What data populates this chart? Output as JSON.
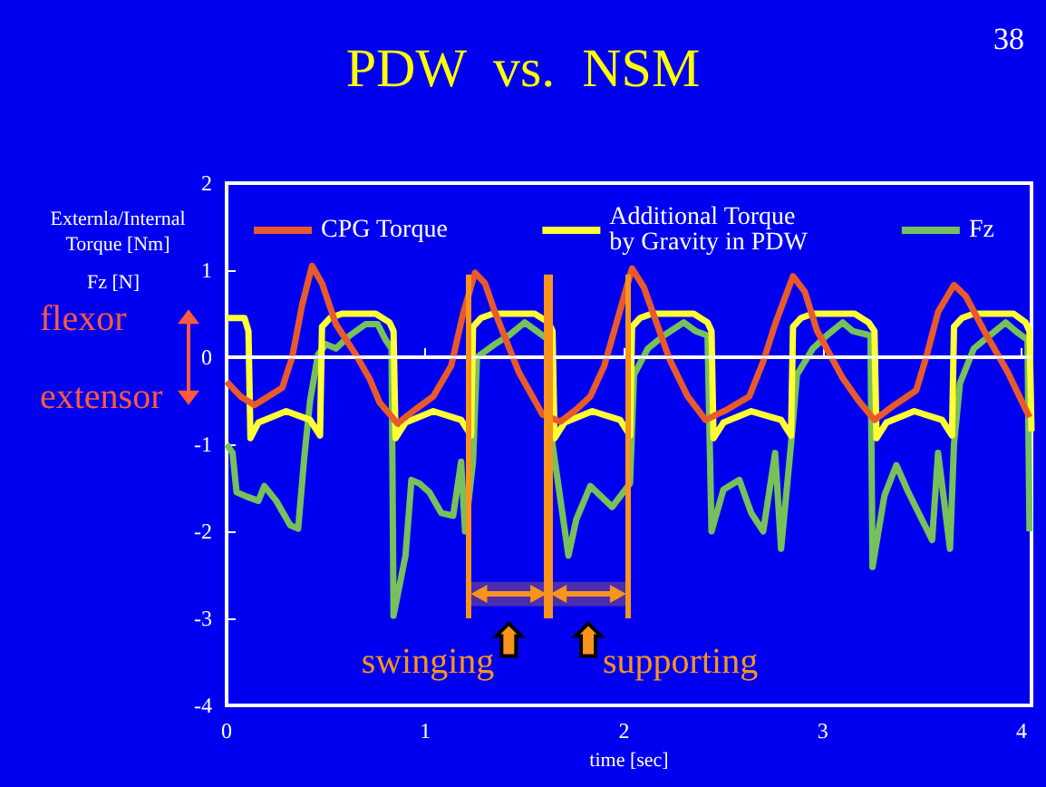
{
  "chart_data": {
    "type": "line",
    "title": "PDW  vs.  NSM",
    "xlabel": "time [sec]",
    "ylabel": "Externla/Internal Torque [Nm]",
    "annotations": [
      "38",
      "Fz [N]",
      "flexor",
      "extensor"
    ],
    "bands": [
      {
        "axis": "x",
        "from": 1.22,
        "to": 1.62,
        "label": "swinging"
      },
      {
        "axis": "x",
        "from": 1.62,
        "to": 2.02,
        "label": "supporting"
      }
    ],
    "xlim": [
      0,
      4.05
    ],
    "xticks": [
      0,
      1,
      2,
      3,
      4
    ],
    "ylim": [
      -4,
      2
    ],
    "yticks": [
      -4,
      -3,
      -2,
      -1,
      0,
      1,
      2
    ],
    "grid": false,
    "legend": "top",
    "marker": "none",
    "line_style": "solid",
    "ref_lines": [
      {
        "axis": "y",
        "value": 0,
        "color": "#ffffff"
      },
      {
        "axis": "x",
        "value": 1.22,
        "color": "#f7941d"
      },
      {
        "axis": "x",
        "value": 1.62,
        "color": "#f7941d"
      },
      {
        "axis": "x",
        "value": 2.02,
        "color": "#f7941d"
      }
    ],
    "series": [
      {
        "name": "CPG Torque",
        "color": "#e85a2a",
        "x": [
          0,
          0.07,
          0.14,
          0.21,
          0.28,
          0.33,
          0.38,
          0.43,
          0.48,
          0.55,
          0.65,
          0.72,
          0.77,
          0.86,
          0.95,
          1.04,
          1.13,
          1.19,
          1.25,
          1.3,
          1.35,
          1.47,
          1.59,
          1.68,
          1.76,
          1.83,
          1.9,
          1.96,
          2.04,
          2.1,
          2.23,
          2.32,
          2.41,
          2.52,
          2.63,
          2.7,
          2.76,
          2.85,
          2.91,
          2.97,
          3.1,
          3.18,
          3.26,
          3.36,
          3.47,
          3.52,
          3.58,
          3.66,
          3.72,
          3.81,
          3.93,
          4.04
        ],
        "values": [
          -0.28,
          -0.45,
          -0.55,
          -0.45,
          -0.35,
          0.0,
          0.6,
          1.05,
          0.85,
          0.38,
          0.03,
          -0.25,
          -0.52,
          -0.76,
          -0.6,
          -0.45,
          -0.1,
          0.5,
          0.97,
          0.85,
          0.52,
          -0.17,
          -0.66,
          -0.74,
          -0.6,
          -0.45,
          -0.1,
          0.38,
          1.02,
          0.8,
          -0.03,
          -0.45,
          -0.72,
          -0.6,
          -0.45,
          -0.05,
          0.38,
          0.93,
          0.75,
          0.31,
          -0.24,
          -0.5,
          -0.72,
          -0.55,
          -0.38,
          0.0,
          0.52,
          0.83,
          0.7,
          0.31,
          -0.17,
          -0.69
        ]
      },
      {
        "name": "Additional Torque\nby Gravity in PDW",
        "color": "#ffff33",
        "x": [
          0,
          0.09,
          0.11,
          0.12,
          0.16,
          0.3,
          0.42,
          0.47,
          0.48,
          0.52,
          0.58,
          0.75,
          0.82,
          0.84,
          0.85,
          0.9,
          1.04,
          1.18,
          1.23,
          1.24,
          1.28,
          1.34,
          1.55,
          1.62,
          1.64,
          1.65,
          1.7,
          1.84,
          1.98,
          2.03,
          2.04,
          2.08,
          2.14,
          2.35,
          2.42,
          2.44,
          2.45,
          2.5,
          2.64,
          2.79,
          2.84,
          2.85,
          2.89,
          2.95,
          3.16,
          3.23,
          3.26,
          3.27,
          3.32,
          3.46,
          3.6,
          3.65,
          3.66,
          3.7,
          3.76,
          3.96,
          4.02,
          4.04,
          4.05
        ],
        "values": [
          0.45,
          0.45,
          0.3,
          -0.93,
          -0.75,
          -0.62,
          -0.72,
          -0.9,
          0.35,
          0.45,
          0.5,
          0.5,
          0.4,
          0.3,
          -0.93,
          -0.75,
          -0.62,
          -0.72,
          -0.9,
          0.35,
          0.45,
          0.5,
          0.5,
          0.4,
          0.3,
          -0.93,
          -0.75,
          -0.62,
          -0.72,
          -0.9,
          0.35,
          0.45,
          0.5,
          0.5,
          0.4,
          0.3,
          -0.93,
          -0.75,
          -0.62,
          -0.72,
          -0.9,
          0.35,
          0.45,
          0.5,
          0.5,
          0.4,
          0.3,
          -0.93,
          -0.75,
          -0.62,
          -0.72,
          -0.9,
          0.35,
          0.45,
          0.5,
          0.5,
          0.4,
          0.3,
          -0.85
        ]
      },
      {
        "name": "Fz",
        "color": "#77c15a",
        "x": [
          0,
          0.03,
          0.05,
          0.1,
          0.16,
          0.19,
          0.25,
          0.32,
          0.36,
          0.39,
          0.42,
          0.46,
          0.5,
          0.55,
          0.62,
          0.7,
          0.76,
          0.8,
          0.83,
          0.84,
          0.9,
          0.93,
          0.97,
          1.02,
          1.08,
          1.14,
          1.18,
          1.2,
          1.24,
          1.26,
          1.35,
          1.42,
          1.5,
          1.56,
          1.62,
          1.64,
          1.72,
          1.76,
          1.83,
          1.94,
          2.03,
          2.05,
          2.12,
          2.2,
          2.3,
          2.36,
          2.42,
          2.44,
          2.5,
          2.58,
          2.64,
          2.7,
          2.76,
          2.79,
          2.84,
          2.87,
          2.95,
          3.02,
          3.1,
          3.15,
          3.24,
          3.25,
          3.31,
          3.37,
          3.43,
          3.55,
          3.58,
          3.64,
          3.66,
          3.69,
          3.76,
          3.84,
          3.92,
          3.97,
          4.03,
          4.04
        ],
        "values": [
          -1.0,
          -1.1,
          -1.55,
          -1.6,
          -1.65,
          -1.48,
          -1.65,
          -1.93,
          -1.97,
          -1.17,
          -0.5,
          0.03,
          0.15,
          0.1,
          0.25,
          0.38,
          0.38,
          0.2,
          0.1,
          -2.97,
          -2.28,
          -1.41,
          -1.45,
          -1.55,
          -1.79,
          -1.82,
          -1.2,
          -2.0,
          -1.2,
          0.0,
          0.15,
          0.25,
          0.4,
          0.3,
          0.2,
          -1.0,
          -2.28,
          -1.86,
          -1.48,
          -1.72,
          -1.45,
          -0.2,
          0.1,
          0.25,
          0.4,
          0.3,
          0.25,
          -2.0,
          -1.52,
          -1.41,
          -1.79,
          -2.0,
          -1.1,
          -2.2,
          -1.0,
          -0.2,
          0.1,
          0.25,
          0.4,
          0.3,
          0.25,
          -2.41,
          -1.59,
          -1.24,
          -1.55,
          -2.1,
          -1.1,
          -2.2,
          -1.0,
          -0.3,
          0.1,
          0.25,
          0.4,
          0.3,
          0.2,
          -2.0
        ]
      }
    ]
  }
}
